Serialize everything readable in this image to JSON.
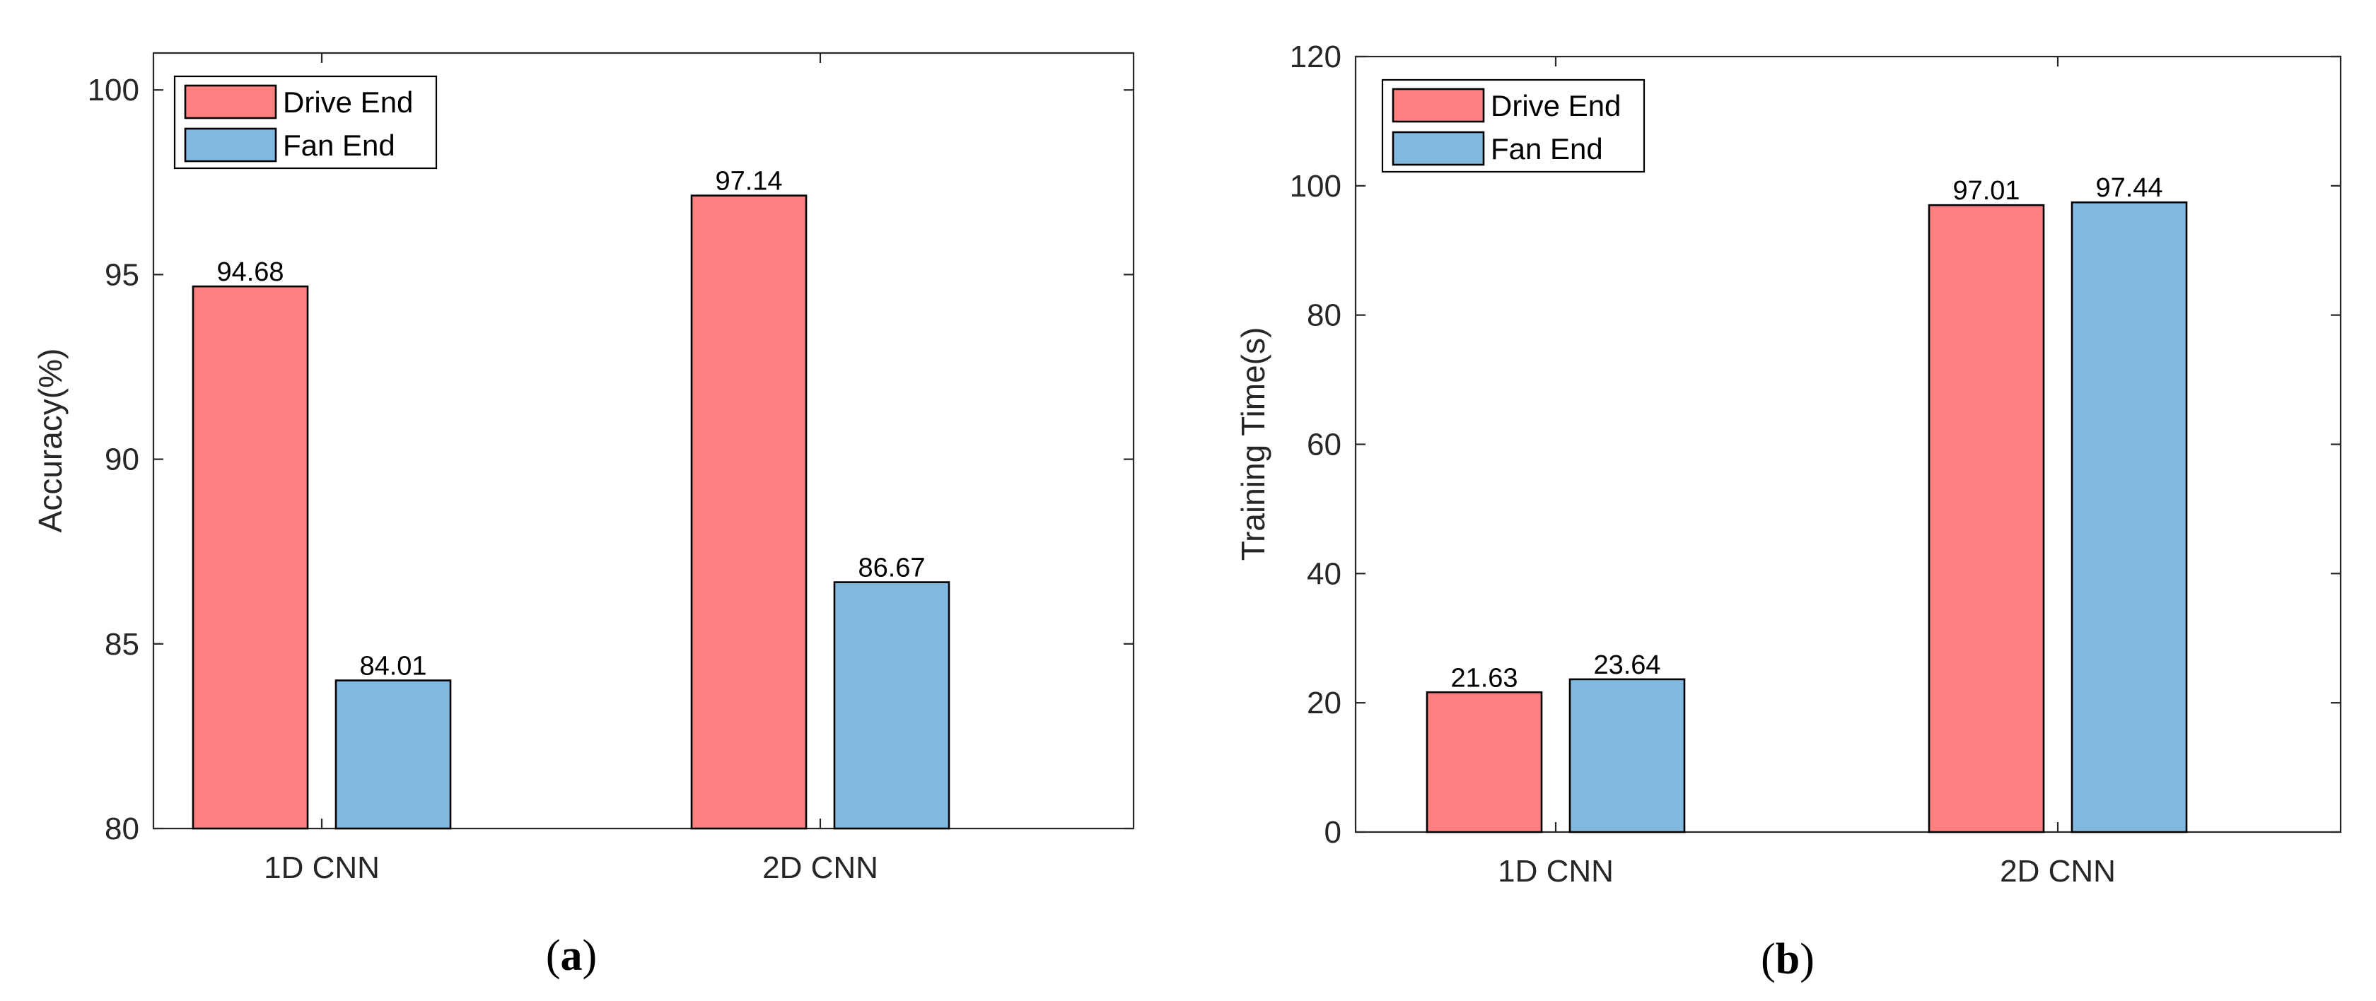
{
  "colors": {
    "drive_end": "#FF8080",
    "fan_end": "#80B8E0"
  },
  "captions": [
    "a",
    "b"
  ],
  "chart_data": [
    {
      "type": "bar",
      "panel": "a",
      "categories": [
        "1D CNN",
        "2D CNN"
      ],
      "series": [
        {
          "name": "Drive End",
          "values": [
            94.68,
            97.14
          ],
          "labels": [
            "94.68",
            "97.14"
          ]
        },
        {
          "name": "Fan End",
          "values": [
            84.01,
            86.67
          ],
          "labels": [
            "84.01",
            "86.67"
          ]
        }
      ],
      "xlabel": "",
      "ylabel": "Accuracy(%)",
      "ylim": [
        80,
        101
      ],
      "yticks": [
        80,
        85,
        90,
        95,
        100
      ],
      "legend": "top-left",
      "grid": false
    },
    {
      "type": "bar",
      "panel": "b",
      "categories": [
        "1D CNN",
        "2D CNN"
      ],
      "series": [
        {
          "name": "Drive End",
          "values": [
            21.63,
            97.01
          ],
          "labels": [
            "21.63",
            "97.01"
          ]
        },
        {
          "name": "Fan End",
          "values": [
            23.64,
            97.44
          ],
          "labels": [
            "23.64",
            "97.44"
          ]
        }
      ],
      "xlabel": "",
      "ylabel": "Training Time(s)",
      "ylim": [
        0,
        120
      ],
      "yticks": [
        0,
        20,
        40,
        60,
        80,
        100,
        120
      ],
      "legend": "top-left",
      "grid": false
    }
  ]
}
